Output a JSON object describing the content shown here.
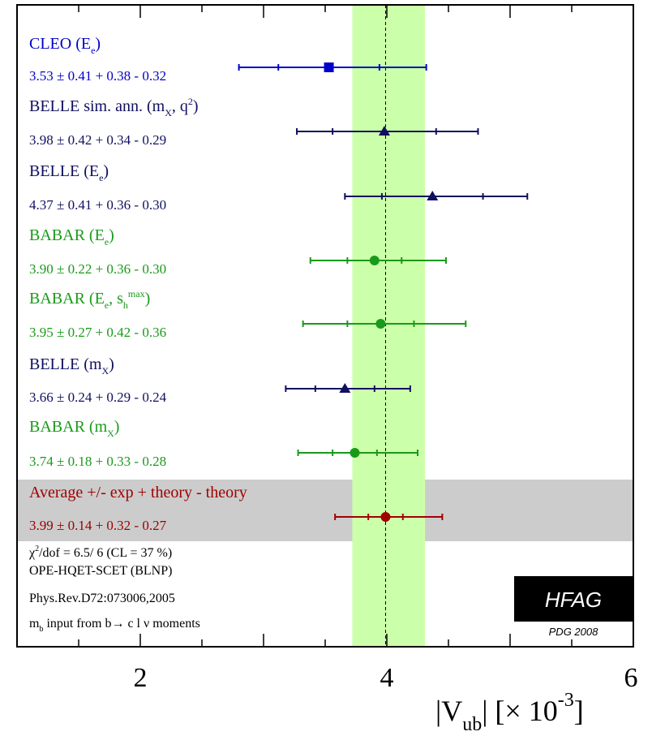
{
  "chart_data": {
    "type": "forest",
    "x_min": 1.0,
    "x_max": 6.0,
    "x_ticks": [
      2,
      4,
      6
    ],
    "x_axis_label": "|V_ub|  [× 10^-3]",
    "average": {
      "value": 3.99,
      "band_low": 3.72,
      "band_high": 4.31
    },
    "measurements": [
      {
        "name": "CLEO (E_e)",
        "value": 3.53,
        "exp": 0.41,
        "th_plus": 0.38,
        "th_minus": 0.32,
        "text": "3.53 ± 0.41 + 0.38 - 0.32",
        "marker": "square",
        "color": "#0000cc"
      },
      {
        "name": "BELLE sim. ann. (m_X, q^2)",
        "value": 3.98,
        "exp": 0.42,
        "th_plus": 0.34,
        "th_minus": 0.29,
        "text": "3.98 ± 0.42 + 0.34 - 0.29",
        "marker": "triangle",
        "color": "#101060"
      },
      {
        "name": "BELLE (E_e)",
        "value": 4.37,
        "exp": 0.41,
        "th_plus": 0.36,
        "th_minus": 0.3,
        "text": "4.37 ± 0.41 + 0.36 - 0.30",
        "marker": "triangle",
        "color": "#101060"
      },
      {
        "name": "BABAR (E_e)",
        "value": 3.9,
        "exp": 0.22,
        "th_plus": 0.36,
        "th_minus": 0.3,
        "text": "3.90 ± 0.22 + 0.36 - 0.30",
        "marker": "circle",
        "color": "#1a9a1a"
      },
      {
        "name": "BABAR (E_e, s_h^max)",
        "value": 3.95,
        "exp": 0.27,
        "th_plus": 0.42,
        "th_minus": 0.36,
        "text": "3.95 ± 0.27 + 0.42 - 0.36",
        "marker": "circle",
        "color": "#1a9a1a"
      },
      {
        "name": "BELLE (m_X)",
        "value": 3.66,
        "exp": 0.24,
        "th_plus": 0.29,
        "th_minus": 0.24,
        "text": "3.66 ± 0.24 + 0.29 - 0.24",
        "marker": "triangle",
        "color": "#101060"
      },
      {
        "name": "BABAR (m_X)",
        "value": 3.74,
        "exp": 0.18,
        "th_plus": 0.33,
        "th_minus": 0.28,
        "text": "3.74 ± 0.18 + 0.33 - 0.28",
        "marker": "circle",
        "color": "#1a9a1a"
      },
      {
        "name": "Average +/- exp + theory - theory",
        "value": 3.99,
        "exp": 0.14,
        "th_plus": 0.32,
        "th_minus": 0.27,
        "text": "3.99 ± 0.14 + 0.32 - 0.27",
        "marker": "circle",
        "color": "#a00000",
        "is_average": true
      }
    ],
    "footnotes": {
      "chi2": "χ²/dof = 6.5/ 6 (CL =  37 %)",
      "method": "OPE-HQET-SCET (BLNP)",
      "reference": "Phys.Rev.D72:073006,2005",
      "mb_input": "m_b input from b→ c l ν moments"
    },
    "logo": {
      "text": "HFAG",
      "sub": "PDG 2008"
    },
    "colors": {
      "band": "#ccffaa",
      "average_band": "#cccccc",
      "frame": "#000000"
    }
  }
}
